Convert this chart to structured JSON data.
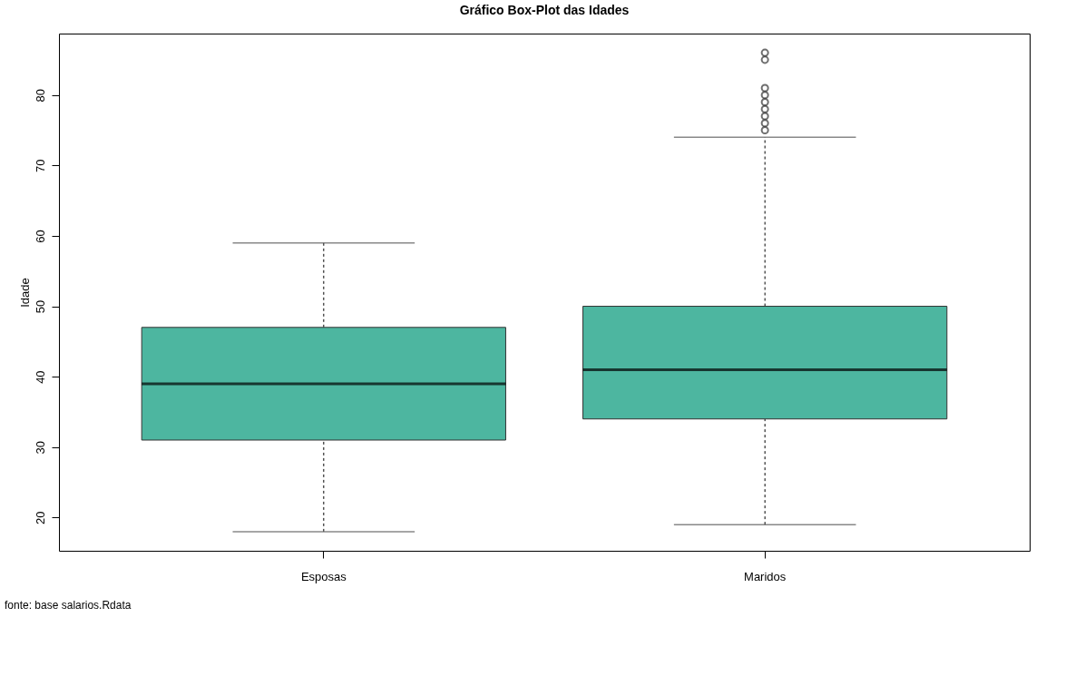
{
  "chart_data": {
    "type": "box",
    "title": "Gráfico Box-Plot das Idades",
    "ylabel": "Idade",
    "categories": [
      "Esposas",
      "Maridos"
    ],
    "color": "#4db6a0",
    "boxes": [
      {
        "low": 18,
        "q1": 31,
        "median": 39,
        "q3": 47,
        "high": 59
      },
      {
        "low": 19,
        "q1": 34,
        "median": 41,
        "q3": 50,
        "high": 74,
        "outliers": [
          75,
          76,
          77,
          78,
          79,
          80,
          81,
          85,
          86
        ]
      }
    ],
    "ylim": [
      15.28,
      88.72
    ],
    "yticks": [
      20,
      30,
      40,
      50,
      60,
      70,
      80
    ],
    "grid": false,
    "annotations": [
      "fonte: base salarios.Rdata"
    ]
  }
}
